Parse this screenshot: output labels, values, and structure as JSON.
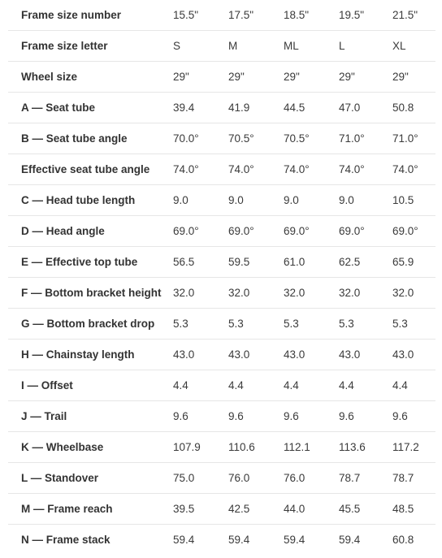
{
  "geometry_table": {
    "rows": [
      {
        "label": "Frame size number",
        "values": [
          "15.5\"",
          "17.5\"",
          "18.5\"",
          "19.5\"",
          "21.5\""
        ]
      },
      {
        "label": "Frame size letter",
        "values": [
          "S",
          "M",
          "ML",
          "L",
          "XL"
        ]
      },
      {
        "label": "Wheel size",
        "values": [
          "29\"",
          "29\"",
          "29\"",
          "29\"",
          "29\""
        ]
      },
      {
        "label": "A — Seat tube",
        "values": [
          "39.4",
          "41.9",
          "44.5",
          "47.0",
          "50.8"
        ]
      },
      {
        "label": "B — Seat tube angle",
        "values": [
          "70.0°",
          "70.5°",
          "70.5°",
          "71.0°",
          "71.0°"
        ]
      },
      {
        "label": "Effective seat tube angle",
        "values": [
          "74.0°",
          "74.0°",
          "74.0°",
          "74.0°",
          "74.0°"
        ]
      },
      {
        "label": "C — Head tube length",
        "values": [
          "9.0",
          "9.0",
          "9.0",
          "9.0",
          "10.5"
        ]
      },
      {
        "label": "D — Head angle",
        "values": [
          "69.0°",
          "69.0°",
          "69.0°",
          "69.0°",
          "69.0°"
        ]
      },
      {
        "label": "E — Effective top tube",
        "values": [
          "56.5",
          "59.5",
          "61.0",
          "62.5",
          "65.9"
        ]
      },
      {
        "label": "F — Bottom bracket height",
        "values": [
          "32.0",
          "32.0",
          "32.0",
          "32.0",
          "32.0"
        ]
      },
      {
        "label": "G — Bottom bracket drop",
        "values": [
          "5.3",
          "5.3",
          "5.3",
          "5.3",
          "5.3"
        ]
      },
      {
        "label": "H — Chainstay length",
        "values": [
          "43.0",
          "43.0",
          "43.0",
          "43.0",
          "43.0"
        ]
      },
      {
        "label": "I — Offset",
        "values": [
          "4.4",
          "4.4",
          "4.4",
          "4.4",
          "4.4"
        ]
      },
      {
        "label": "J — Trail",
        "values": [
          "9.6",
          "9.6",
          "9.6",
          "9.6",
          "9.6"
        ]
      },
      {
        "label": "K — Wheelbase",
        "values": [
          "107.9",
          "110.6",
          "112.1",
          "113.6",
          "117.2"
        ]
      },
      {
        "label": "L — Standover",
        "values": [
          "75.0",
          "76.0",
          "76.0",
          "78.7",
          "78.7"
        ]
      },
      {
        "label": "M — Frame reach",
        "values": [
          "39.5",
          "42.5",
          "44.0",
          "45.5",
          "48.5"
        ]
      },
      {
        "label": "N — Frame stack",
        "values": [
          "59.4",
          "59.4",
          "59.4",
          "59.4",
          "60.8"
        ]
      }
    ]
  }
}
